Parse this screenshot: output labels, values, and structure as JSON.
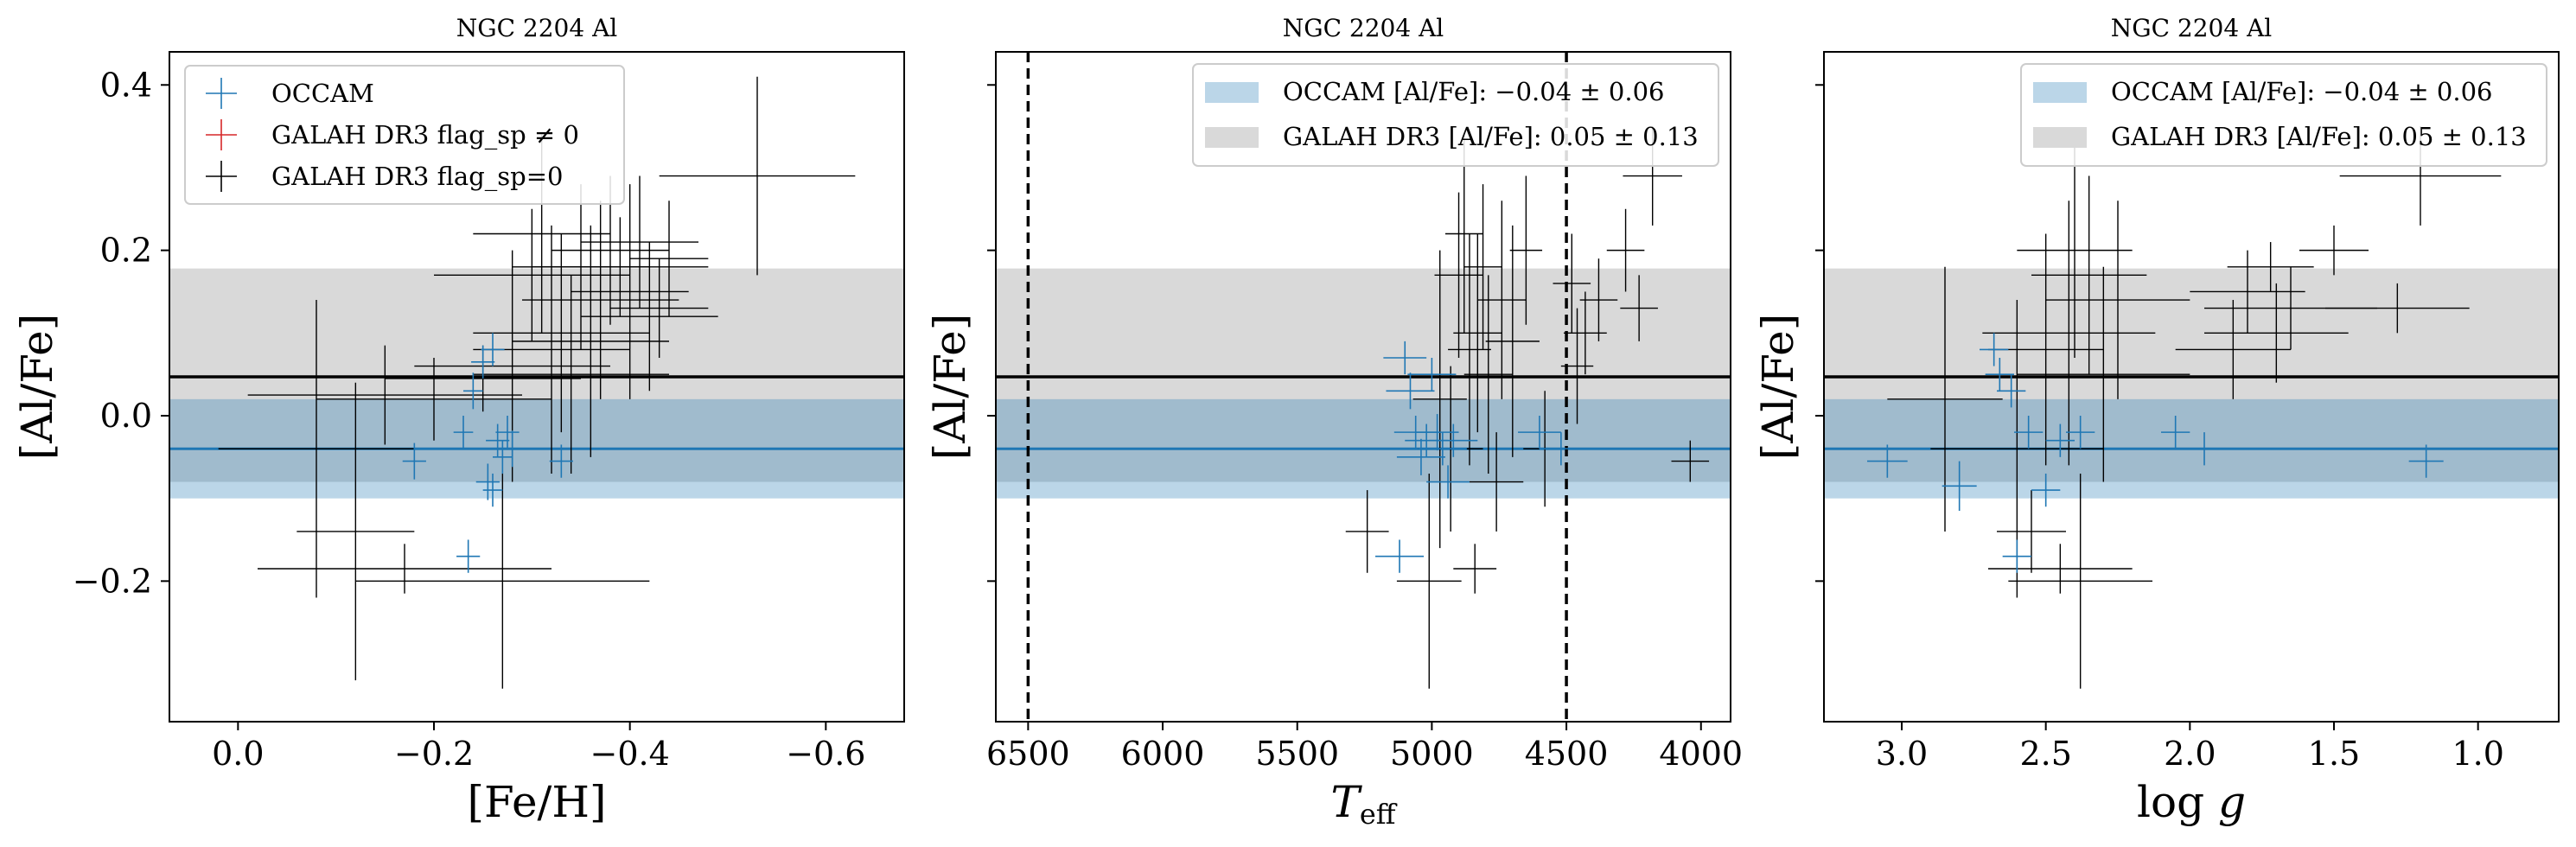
{
  "figure": {
    "ylabel": "[Al/Fe]",
    "colors": {
      "occam": "#1f77b4",
      "galah_flag": "#d62728",
      "galah": "#000000"
    }
  },
  "chart_data": [
    {
      "type": "scatter",
      "title": "NGC 2204 Al",
      "xlabel": "[Fe/H]",
      "ylabel": "[Al/Fe]",
      "xlim": [
        0.07,
        -0.68
      ],
      "ylim": [
        -0.37,
        0.44
      ],
      "xticks": [
        0.0,
        -0.2,
        -0.4,
        -0.6
      ],
      "xticklabels": [
        "0.0",
        "−0.2",
        "−0.4",
        "−0.6"
      ],
      "yticks": [
        -0.2,
        0.0,
        0.2,
        0.4
      ],
      "yticklabels": [
        "−0.2",
        "0.0",
        "0.2",
        "0.4"
      ],
      "legend": {
        "position": "top-left",
        "entries": [
          {
            "label": "OCCAM",
            "color": "#1f77b4"
          },
          {
            "label": "GALAH DR3 flag_sp ≠ 0",
            "color": "#d62728"
          },
          {
            "label": "GALAH DR3 flag_sp=0",
            "color": "#000000"
          }
        ]
      },
      "bands": [
        {
          "center": 0.047,
          "low": -0.08,
          "high": 0.178,
          "color": "#d9d9d9"
        },
        {
          "center": -0.04,
          "low": -0.1,
          "high": 0.02,
          "color": "#1f77b4"
        }
      ],
      "series": [
        {
          "name": "OCCAM",
          "color": "#1f77b4",
          "points": [
            {
              "x": -0.18,
              "y": -0.055,
              "xerr": 0.012,
              "yerr": 0.022
            },
            {
              "x": -0.23,
              "y": -0.02,
              "xerr": 0.01,
              "yerr": 0.02
            },
            {
              "x": -0.235,
              "y": -0.17,
              "xerr": 0.012,
              "yerr": 0.02
            },
            {
              "x": -0.24,
              "y": 0.03,
              "xerr": 0.01,
              "yerr": 0.022
            },
            {
              "x": -0.25,
              "y": 0.065,
              "xerr": 0.012,
              "yerr": 0.02
            },
            {
              "x": -0.255,
              "y": -0.08,
              "xerr": 0.012,
              "yerr": 0.022
            },
            {
              "x": -0.26,
              "y": -0.09,
              "xerr": 0.01,
              "yerr": 0.02
            },
            {
              "x": -0.265,
              "y": -0.03,
              "xerr": 0.012,
              "yerr": 0.02
            },
            {
              "x": -0.27,
              "y": -0.05,
              "xerr": 0.01,
              "yerr": 0.02
            },
            {
              "x": -0.275,
              "y": -0.02,
              "xerr": 0.012,
              "yerr": 0.02
            },
            {
              "x": -0.28,
              "y": -0.04,
              "xerr": 0.01,
              "yerr": 0.022
            },
            {
              "x": -0.26,
              "y": 0.08,
              "xerr": 0.012,
              "yerr": 0.02
            },
            {
              "x": -0.33,
              "y": -0.055,
              "xerr": 0.012,
              "yerr": 0.02
            }
          ]
        },
        {
          "name": "GALAH DR3 flag_sp=0",
          "color": "#000000",
          "points": [
            {
              "x": -0.12,
              "y": -0.14,
              "xerr": 0.06,
              "yerr": 0.18
            },
            {
              "x": -0.17,
              "y": -0.185,
              "xerr": 0.15,
              "yerr": 0.03
            },
            {
              "x": -0.2,
              "y": 0.02,
              "xerr": 0.12,
              "yerr": 0.05
            },
            {
              "x": -0.08,
              "y": -0.04,
              "xerr": 0.1,
              "yerr": 0.18
            },
            {
              "x": -0.15,
              "y": 0.025,
              "xerr": 0.14,
              "yerr": 0.06
            },
            {
              "x": -0.25,
              "y": 0.045,
              "xerr": 0.1,
              "yerr": 0.04
            },
            {
              "x": -0.27,
              "y": -0.2,
              "xerr": 0.15,
              "yerr": 0.13
            },
            {
              "x": -0.28,
              "y": 0.06,
              "xerr": 0.1,
              "yerr": 0.14
            },
            {
              "x": -0.3,
              "y": 0.17,
              "xerr": 0.1,
              "yerr": 0.08
            },
            {
              "x": -0.31,
              "y": 0.22,
              "xerr": 0.07,
              "yerr": 0.12
            },
            {
              "x": -0.32,
              "y": 0.08,
              "xerr": 0.08,
              "yerr": 0.15
            },
            {
              "x": -0.33,
              "y": 0.1,
              "xerr": 0.09,
              "yerr": 0.12
            },
            {
              "x": -0.34,
              "y": 0.05,
              "xerr": 0.1,
              "yerr": 0.12
            },
            {
              "x": -0.35,
              "y": 0.18,
              "xerr": 0.07,
              "yerr": 0.1
            },
            {
              "x": -0.36,
              "y": 0.09,
              "xerr": 0.08,
              "yerr": 0.14
            },
            {
              "x": -0.37,
              "y": 0.14,
              "xerr": 0.08,
              "yerr": 0.12
            },
            {
              "x": -0.38,
              "y": 0.2,
              "xerr": 0.06,
              "yerr": 0.09
            },
            {
              "x": -0.39,
              "y": 0.18,
              "xerr": 0.09,
              "yerr": 0.06
            },
            {
              "x": -0.4,
              "y": 0.15,
              "xerr": 0.06,
              "yerr": 0.13
            },
            {
              "x": -0.41,
              "y": 0.21,
              "xerr": 0.06,
              "yerr": 0.08
            },
            {
              "x": -0.42,
              "y": 0.12,
              "xerr": 0.07,
              "yerr": 0.09
            },
            {
              "x": -0.43,
              "y": 0.13,
              "xerr": 0.05,
              "yerr": 0.06
            },
            {
              "x": -0.44,
              "y": 0.19,
              "xerr": 0.04,
              "yerr": 0.07
            },
            {
              "x": -0.53,
              "y": 0.29,
              "xerr": 0.1,
              "yerr": 0.12
            }
          ]
        }
      ]
    },
    {
      "type": "scatter",
      "title": "NGC 2204 Al",
      "xlabel": "T_eff",
      "ylabel": "[Al/Fe]",
      "xlim": [
        6620,
        3890
      ],
      "ylim": [
        -0.37,
        0.44
      ],
      "xticks": [
        6500,
        6000,
        5500,
        5000,
        4500,
        4000
      ],
      "xticklabels": [
        "6500",
        "6000",
        "5500",
        "5000",
        "4500",
        "4000"
      ],
      "yticks": [
        -0.2,
        0.0,
        0.2,
        0.4
      ],
      "yticklabels": [
        "",
        "",
        "",
        ""
      ],
      "vlines": [
        6500,
        4500
      ],
      "legend": {
        "position": "top-right",
        "entries": [
          {
            "label": "OCCAM [Al/Fe]: −0.04 ± 0.06",
            "color": "#1f77b4"
          },
          {
            "label": "GALAH DR3 [Al/Fe]: 0.05 ± 0.13",
            "color": "#d9d9d9"
          }
        ]
      },
      "bands": [
        {
          "center": 0.047,
          "low": -0.08,
          "high": 0.178,
          "color": "#d9d9d9"
        },
        {
          "center": -0.04,
          "low": -0.1,
          "high": 0.02,
          "color": "#1f77b4"
        }
      ],
      "series": [
        {
          "name": "OCCAM",
          "color": "#1f77b4",
          "points": [
            {
              "x": 5120,
              "y": -0.17,
              "xerr": 90,
              "yerr": 0.02
            },
            {
              "x": 5100,
              "y": 0.07,
              "xerr": 80,
              "yerr": 0.02
            },
            {
              "x": 5080,
              "y": 0.03,
              "xerr": 90,
              "yerr": 0.022
            },
            {
              "x": 5060,
              "y": -0.02,
              "xerr": 80,
              "yerr": 0.02
            },
            {
              "x": 5040,
              "y": -0.05,
              "xerr": 90,
              "yerr": 0.022
            },
            {
              "x": 5020,
              "y": -0.03,
              "xerr": 80,
              "yerr": 0.02
            },
            {
              "x": 5000,
              "y": 0.05,
              "xerr": 90,
              "yerr": 0.02
            },
            {
              "x": 4980,
              "y": -0.02,
              "xerr": 80,
              "yerr": 0.022
            },
            {
              "x": 4960,
              "y": -0.04,
              "xerr": 90,
              "yerr": 0.02
            },
            {
              "x": 4940,
              "y": -0.08,
              "xerr": 80,
              "yerr": 0.02
            },
            {
              "x": 4920,
              "y": -0.03,
              "xerr": 90,
              "yerr": 0.02
            },
            {
              "x": 4600,
              "y": -0.02,
              "xerr": 80,
              "yerr": 0.02
            },
            {
              "x": 4520,
              "y": -0.04,
              "xerr": 80,
              "yerr": 0.02
            }
          ]
        },
        {
          "name": "GALAH DR3 flag_sp=0",
          "color": "#000000",
          "points": [
            {
              "x": 5240,
              "y": -0.14,
              "xerr": 80,
              "yerr": 0.05
            },
            {
              "x": 5010,
              "y": -0.2,
              "xerr": 120,
              "yerr": 0.13
            },
            {
              "x": 4970,
              "y": 0.02,
              "xerr": 100,
              "yerr": 0.18
            },
            {
              "x": 4930,
              "y": -0.04,
              "xerr": 120,
              "yerr": 0.1
            },
            {
              "x": 4900,
              "y": 0.17,
              "xerr": 90,
              "yerr": 0.1
            },
            {
              "x": 4880,
              "y": 0.22,
              "xerr": 70,
              "yerr": 0.12
            },
            {
              "x": 4860,
              "y": 0.08,
              "xerr": 80,
              "yerr": 0.14
            },
            {
              "x": 4840,
              "y": -0.185,
              "xerr": 80,
              "yerr": 0.03
            },
            {
              "x": 4830,
              "y": 0.1,
              "xerr": 90,
              "yerr": 0.12
            },
            {
              "x": 4810,
              "y": 0.18,
              "xerr": 70,
              "yerr": 0.1
            },
            {
              "x": 4790,
              "y": 0.05,
              "xerr": 90,
              "yerr": 0.12
            },
            {
              "x": 4760,
              "y": -0.08,
              "xerr": 100,
              "yerr": 0.06
            },
            {
              "x": 4740,
              "y": 0.14,
              "xerr": 90,
              "yerr": 0.12
            },
            {
              "x": 4700,
              "y": 0.09,
              "xerr": 100,
              "yerr": 0.14
            },
            {
              "x": 4650,
              "y": 0.2,
              "xerr": 60,
              "yerr": 0.09
            },
            {
              "x": 4580,
              "y": -0.04,
              "xerr": 80,
              "yerr": 0.07
            },
            {
              "x": 4480,
              "y": 0.16,
              "xerr": 70,
              "yerr": 0.06
            },
            {
              "x": 4460,
              "y": 0.06,
              "xerr": 60,
              "yerr": 0.07
            },
            {
              "x": 4430,
              "y": 0.1,
              "xerr": 80,
              "yerr": 0.05
            },
            {
              "x": 4380,
              "y": 0.14,
              "xerr": 70,
              "yerr": 0.05
            },
            {
              "x": 4280,
              "y": 0.2,
              "xerr": 70,
              "yerr": 0.05
            },
            {
              "x": 4230,
              "y": 0.13,
              "xerr": 70,
              "yerr": 0.04
            },
            {
              "x": 4180,
              "y": 0.29,
              "xerr": 110,
              "yerr": 0.06
            },
            {
              "x": 4040,
              "y": -0.055,
              "xerr": 70,
              "yerr": 0.025
            }
          ]
        }
      ]
    },
    {
      "type": "scatter",
      "title": "NGC 2204 Al",
      "xlabel": "log g",
      "ylabel": "[Al/Fe]",
      "xlim": [
        3.27,
        0.72
      ],
      "ylim": [
        -0.37,
        0.44
      ],
      "xticks": [
        3.0,
        2.5,
        2.0,
        1.5,
        1.0
      ],
      "xticklabels": [
        "3.0",
        "2.5",
        "2.0",
        "1.5",
        "1.0"
      ],
      "yticks": [
        -0.2,
        0.0,
        0.2,
        0.4
      ],
      "yticklabels": [
        "",
        "",
        "",
        ""
      ],
      "legend": {
        "position": "top-right",
        "entries": [
          {
            "label": "OCCAM [Al/Fe]: −0.04 ± 0.06",
            "color": "#1f77b4"
          },
          {
            "label": "GALAH DR3 [Al/Fe]: 0.05 ± 0.13",
            "color": "#d9d9d9"
          }
        ]
      },
      "bands": [
        {
          "center": 0.047,
          "low": -0.08,
          "high": 0.178,
          "color": "#d9d9d9"
        },
        {
          "center": -0.04,
          "low": -0.1,
          "high": 0.02,
          "color": "#1f77b4"
        }
      ],
      "series": [
        {
          "name": "OCCAM",
          "color": "#1f77b4",
          "points": [
            {
              "x": 3.05,
              "y": -0.055,
              "xerr": 0.07,
              "yerr": 0.02
            },
            {
              "x": 2.8,
              "y": -0.085,
              "xerr": 0.06,
              "yerr": 0.03
            },
            {
              "x": 2.68,
              "y": 0.08,
              "xerr": 0.05,
              "yerr": 0.02
            },
            {
              "x": 2.66,
              "y": 0.05,
              "xerr": 0.05,
              "yerr": 0.02
            },
            {
              "x": 2.62,
              "y": 0.03,
              "xerr": 0.05,
              "yerr": 0.02
            },
            {
              "x": 2.6,
              "y": -0.17,
              "xerr": 0.05,
              "yerr": 0.02
            },
            {
              "x": 2.56,
              "y": -0.02,
              "xerr": 0.05,
              "yerr": 0.02
            },
            {
              "x": 2.5,
              "y": -0.09,
              "xerr": 0.05,
              "yerr": 0.02
            },
            {
              "x": 2.45,
              "y": -0.03,
              "xerr": 0.05,
              "yerr": 0.02
            },
            {
              "x": 2.38,
              "y": -0.02,
              "xerr": 0.05,
              "yerr": 0.02
            },
            {
              "x": 2.05,
              "y": -0.02,
              "xerr": 0.05,
              "yerr": 0.02
            },
            {
              "x": 1.95,
              "y": -0.04,
              "xerr": 0.05,
              "yerr": 0.02
            },
            {
              "x": 1.18,
              "y": -0.055,
              "xerr": 0.06,
              "yerr": 0.02
            }
          ]
        },
        {
          "name": "GALAH DR3 flag_sp=0",
          "color": "#000000",
          "points": [
            {
              "x": 2.85,
              "y": 0.02,
              "xerr": 0.2,
              "yerr": 0.16
            },
            {
              "x": 2.6,
              "y": -0.04,
              "xerr": 0.3,
              "yerr": 0.18
            },
            {
              "x": 2.55,
              "y": -0.14,
              "xerr": 0.12,
              "yerr": 0.05
            },
            {
              "x": 2.5,
              "y": 0.08,
              "xerr": 0.2,
              "yerr": 0.14
            },
            {
              "x": 2.45,
              "y": -0.185,
              "xerr": 0.25,
              "yerr": 0.03
            },
            {
              "x": 2.42,
              "y": 0.1,
              "xerr": 0.3,
              "yerr": 0.16
            },
            {
              "x": 2.4,
              "y": 0.2,
              "xerr": 0.2,
              "yerr": 0.13
            },
            {
              "x": 2.38,
              "y": -0.2,
              "xerr": 0.25,
              "yerr": 0.13
            },
            {
              "x": 2.35,
              "y": 0.17,
              "xerr": 0.2,
              "yerr": 0.12
            },
            {
              "x": 2.3,
              "y": 0.05,
              "xerr": 0.3,
              "yerr": 0.13
            },
            {
              "x": 2.25,
              "y": 0.14,
              "xerr": 0.25,
              "yerr": 0.12
            },
            {
              "x": 1.85,
              "y": 0.08,
              "xerr": 0.2,
              "yerr": 0.06
            },
            {
              "x": 1.8,
              "y": 0.15,
              "xerr": 0.2,
              "yerr": 0.05
            },
            {
              "x": 1.72,
              "y": 0.18,
              "xerr": 0.15,
              "yerr": 0.03
            },
            {
              "x": 1.7,
              "y": 0.1,
              "xerr": 0.25,
              "yerr": 0.06
            },
            {
              "x": 1.65,
              "y": 0.13,
              "xerr": 0.3,
              "yerr": 0.05
            },
            {
              "x": 1.5,
              "y": 0.2,
              "xerr": 0.12,
              "yerr": 0.03
            },
            {
              "x": 1.28,
              "y": 0.13,
              "xerr": 0.25,
              "yerr": 0.03
            },
            {
              "x": 1.2,
              "y": 0.29,
              "xerr": 0.28,
              "yerr": 0.06
            }
          ]
        }
      ]
    }
  ]
}
